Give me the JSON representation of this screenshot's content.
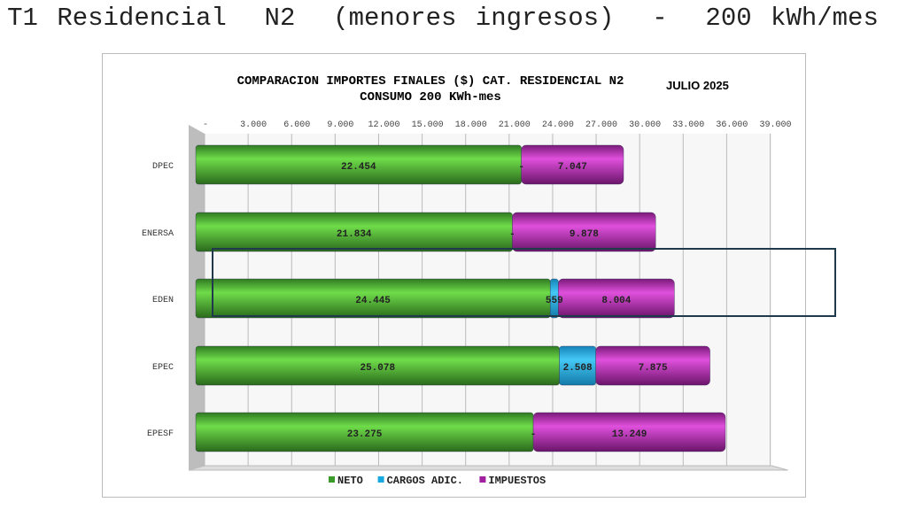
{
  "slide_title": "T1 Residencial  N2  (menores ingresos)  -  200 kWh/mes",
  "chart_data": {
    "type": "bar",
    "orientation": "horizontal-stacked",
    "title": "COMPARACION IMPORTES FINALES ($) CAT. RESIDENCIAL N2",
    "subtitle": "CONSUMO 200 KWh-mes",
    "title_note": "JULIO 2025",
    "categories": [
      "DPEC",
      "ENERSA",
      "EDEN",
      "EPEC",
      "EPESF"
    ],
    "series": [
      {
        "name": "NETO",
        "color": "#3a9a2a",
        "values": [
          22454,
          21834,
          24445,
          25078,
          23275
        ],
        "labels": [
          "22.454",
          "21.834",
          "24.445",
          "25.078",
          "23.275"
        ]
      },
      {
        "name": "CARGOS ADIC.",
        "color": "#1aa8e0",
        "values": [
          0,
          0,
          559,
          2508,
          0
        ],
        "labels": [
          "-",
          "-",
          "559",
          "2.508",
          "-"
        ]
      },
      {
        "name": "IMPUESTOS",
        "color": "#a020a0",
        "values": [
          7047,
          9878,
          8004,
          7875,
          13249
        ],
        "labels": [
          "7.047",
          "9.878",
          "8.004",
          "7.875",
          "13.249"
        ]
      }
    ],
    "xlim": [
      0,
      39000
    ],
    "xticks": [
      0,
      3000,
      6000,
      9000,
      12000,
      15000,
      18000,
      21000,
      24000,
      27000,
      30000,
      33000,
      36000,
      39000
    ],
    "xtick_labels": [
      "-",
      "3.000",
      "6.000",
      "9.000",
      "12.000",
      "15.000",
      "18.000",
      "21.000",
      "24.000",
      "27.000",
      "30.000",
      "33.000",
      "36.000",
      "39.000"
    ],
    "grid": true,
    "legend": "bottom",
    "highlighted_category": "ENERSA"
  }
}
